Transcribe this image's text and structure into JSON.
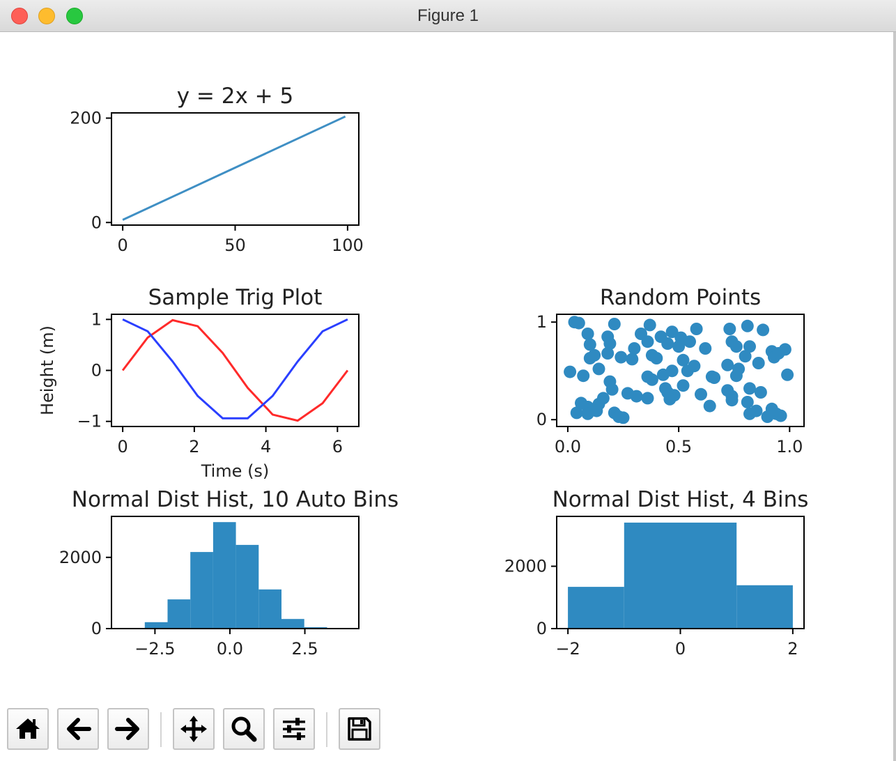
{
  "window": {
    "title": "Figure 1"
  },
  "toolbar": {
    "buttons": [
      {
        "name": "home-button",
        "icon": "home-icon"
      },
      {
        "name": "back-button",
        "icon": "arrow-left-icon"
      },
      {
        "name": "forward-button",
        "icon": "arrow-right-icon"
      },
      {
        "name": "pan-button",
        "icon": "move-icon"
      },
      {
        "name": "zoom-button",
        "icon": "magnifier-icon"
      },
      {
        "name": "configure-subplots-button",
        "icon": "sliders-icon"
      },
      {
        "name": "save-button",
        "icon": "floppy-disk-icon"
      }
    ]
  },
  "chart_data": [
    {
      "type": "line",
      "title": "y = 2x + 5",
      "xlabel": "",
      "ylabel": "",
      "xlim": [
        -5,
        105
      ],
      "ylim": [
        -5,
        210
      ],
      "xticks": [
        0,
        50,
        100
      ],
      "yticks": [
        0,
        200
      ],
      "series": [
        {
          "x": [
            0,
            99
          ],
          "values": [
            5,
            203
          ],
          "color": "#3f8fc4"
        }
      ]
    },
    {
      "type": "line",
      "title": "Sample Trig Plot",
      "xlabel": "Time (s)",
      "ylabel": "Height (m)",
      "xlim": [
        -0.314,
        6.597
      ],
      "ylim": [
        -1.1,
        1.1
      ],
      "xticks": [
        0,
        2,
        4,
        6
      ],
      "yticks": [
        -1,
        0,
        1
      ],
      "ytick_labels": [
        "−1",
        "0",
        "1"
      ],
      "series": [
        {
          "x": [
            0,
            0.698,
            1.396,
            2.094,
            2.793,
            3.491,
            4.189,
            4.887,
            5.585,
            6.283
          ],
          "values": [
            0,
            0.643,
            0.985,
            0.866,
            0.342,
            -0.342,
            -0.866,
            -0.985,
            -0.643,
            0
          ],
          "color": "#ff2a2a"
        },
        {
          "x": [
            0,
            0.698,
            1.396,
            2.094,
            2.793,
            3.491,
            4.189,
            4.887,
            5.585,
            6.283
          ],
          "values": [
            1,
            0.766,
            0.174,
            -0.5,
            -0.94,
            -0.94,
            -0.5,
            0.174,
            0.766,
            1
          ],
          "color": "#2a3fff"
        }
      ]
    },
    {
      "type": "scatter",
      "title": "Random Points",
      "xlabel": "",
      "ylabel": "",
      "xlim": [
        -0.05,
        1.065
      ],
      "ylim": [
        -0.07,
        1.08
      ],
      "xticks": [
        0,
        0.5,
        1
      ],
      "xtick_labels": [
        "0.0",
        "0.5",
        "1.0"
      ],
      "yticks": [
        0,
        1
      ],
      "color": "#2f8ac1",
      "points": [
        [
          0.03,
          1.0
        ],
        [
          0.05,
          0.99
        ],
        [
          0.21,
          0.98
        ],
        [
          0.37,
          0.97
        ],
        [
          0.58,
          0.93
        ],
        [
          0.73,
          0.93
        ],
        [
          0.88,
          0.92
        ],
        [
          0.81,
          0.96
        ],
        [
          0.09,
          0.88
        ],
        [
          0.18,
          0.85
        ],
        [
          0.33,
          0.88
        ],
        [
          0.42,
          0.85
        ],
        [
          0.47,
          0.9
        ],
        [
          0.51,
          0.84
        ],
        [
          0.55,
          0.8
        ],
        [
          0.74,
          0.8
        ],
        [
          0.1,
          0.77
        ],
        [
          0.19,
          0.78
        ],
        [
          0.3,
          0.73
        ],
        [
          0.36,
          0.8
        ],
        [
          0.45,
          0.78
        ],
        [
          0.5,
          0.75
        ],
        [
          0.62,
          0.73
        ],
        [
          0.76,
          0.75
        ],
        [
          0.82,
          0.75
        ],
        [
          0.92,
          0.7
        ],
        [
          0.98,
          0.72
        ],
        [
          0.1,
          0.63
        ],
        [
          0.12,
          0.66
        ],
        [
          0.18,
          0.68
        ],
        [
          0.29,
          0.62
        ],
        [
          0.38,
          0.66
        ],
        [
          0.4,
          0.63
        ],
        [
          0.52,
          0.61
        ],
        [
          0.72,
          0.56
        ],
        [
          0.8,
          0.65
        ],
        [
          0.93,
          0.64
        ],
        [
          0.95,
          0.68
        ],
        [
          0.01,
          0.49
        ],
        [
          0.07,
          0.45
        ],
        [
          0.14,
          0.52
        ],
        [
          0.36,
          0.44
        ],
        [
          0.38,
          0.41
        ],
        [
          0.43,
          0.46
        ],
        [
          0.47,
          0.5
        ],
        [
          0.54,
          0.5
        ],
        [
          0.57,
          0.55
        ],
        [
          0.65,
          0.44
        ],
        [
          0.66,
          0.43
        ],
        [
          0.76,
          0.45
        ],
        [
          0.77,
          0.52
        ],
        [
          0.99,
          0.46
        ],
        [
          0.19,
          0.39
        ],
        [
          0.2,
          0.31
        ],
        [
          0.27,
          0.27
        ],
        [
          0.31,
          0.24
        ],
        [
          0.36,
          0.22
        ],
        [
          0.45,
          0.28
        ],
        [
          0.48,
          0.25
        ],
        [
          0.52,
          0.35
        ],
        [
          0.6,
          0.26
        ],
        [
          0.72,
          0.3
        ],
        [
          0.74,
          0.24
        ],
        [
          0.82,
          0.32
        ],
        [
          0.87,
          0.28
        ],
        [
          0.06,
          0.17
        ],
        [
          0.09,
          0.13
        ],
        [
          0.14,
          0.16
        ],
        [
          0.16,
          0.22
        ],
        [
          0.21,
          0.07
        ],
        [
          0.23,
          0.03
        ],
        [
          0.46,
          0.21
        ],
        [
          0.64,
          0.14
        ],
        [
          0.74,
          0.2
        ],
        [
          0.81,
          0.18
        ],
        [
          0.85,
          0.09
        ],
        [
          0.92,
          0.11
        ],
        [
          0.94,
          0.06
        ],
        [
          0.04,
          0.07
        ],
        [
          0.09,
          0.06
        ],
        [
          0.13,
          0.09
        ],
        [
          0.82,
          0.06
        ],
        [
          0.9,
          0.03
        ],
        [
          0.96,
          0.04
        ],
        [
          0.25,
          0.02
        ],
        [
          0.44,
          0.32
        ],
        [
          0.86,
          0.58
        ],
        [
          0.24,
          0.64
        ]
      ]
    },
    {
      "type": "bar",
      "title": "Normal Dist Hist, 10 Auto Bins",
      "xlabel": "",
      "ylabel": "",
      "xlim": [
        -3.95,
        4.3
      ],
      "ylim": [
        0,
        3150
      ],
      "xticks": [
        -2.5,
        0,
        2.5
      ],
      "xtick_labels": [
        "−2.5",
        "0.0",
        "2.5"
      ],
      "yticks": [
        0,
        2000
      ],
      "color": "#2f8ac1",
      "bin_edges": [
        -3.6,
        -2.84,
        -2.08,
        -1.32,
        -0.56,
        0.2,
        0.96,
        1.72,
        2.48,
        3.24,
        4.0
      ],
      "values": [
        20,
        180,
        820,
        2150,
        2990,
        2350,
        1100,
        270,
        40,
        5
      ]
    },
    {
      "type": "bar",
      "title": "Normal Dist Hist, 4 Bins",
      "xlabel": "",
      "ylabel": "",
      "xlim": [
        -2.2,
        2.2
      ],
      "ylim": [
        0,
        3600
      ],
      "xticks": [
        -2,
        0,
        2
      ],
      "xtick_labels": [
        "−2",
        "0",
        "2"
      ],
      "yticks": [
        0,
        2000
      ],
      "color": "#2f8ac1",
      "bin_edges": [
        -2,
        -1,
        0,
        1,
        2
      ],
      "values": [
        1340,
        3400,
        3400,
        1390
      ]
    }
  ]
}
